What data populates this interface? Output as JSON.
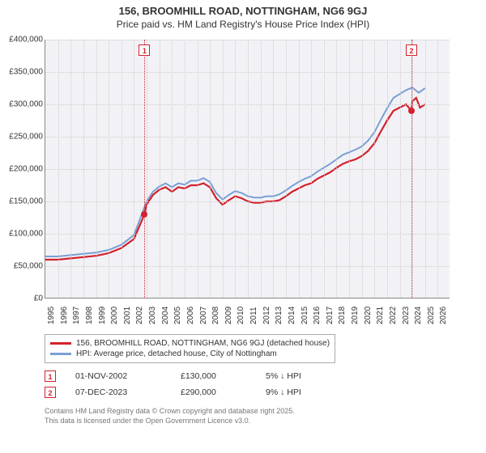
{
  "title": "156, BROOMHILL ROAD, NOTTINGHAM, NG6 9GJ",
  "subtitle": "Price paid vs. HM Land Registry's House Price Index (HPI)",
  "chart": {
    "type": "line",
    "background_color": "#f2f2f6",
    "grid_color": "#cccccc",
    "x": {
      "min": 1995,
      "max": 2027,
      "ticks": [
        1995,
        1996,
        1997,
        1998,
        1999,
        2000,
        2001,
        2002,
        2003,
        2004,
        2005,
        2006,
        2007,
        2008,
        2009,
        2010,
        2011,
        2012,
        2013,
        2014,
        2015,
        2016,
        2017,
        2018,
        2019,
        2020,
        2021,
        2022,
        2023,
        2024,
        2025,
        2026
      ]
    },
    "y": {
      "min": 0,
      "max": 400000,
      "ticks": [
        0,
        50000,
        100000,
        150000,
        200000,
        250000,
        300000,
        350000,
        400000
      ],
      "labels": [
        "£0",
        "£50,000",
        "£100,000",
        "£150,000",
        "£200,000",
        "£250,000",
        "£300,000",
        "£350,000",
        "£400,000"
      ]
    },
    "series": [
      {
        "name": "156, BROOMHILL ROAD, NOTTINGHAM, NG6 9GJ (detached house)",
        "color": "#d3212d",
        "width": 2.2,
        "points": [
          [
            1995,
            60000
          ],
          [
            1996,
            60000
          ],
          [
            1997,
            62000
          ],
          [
            1998,
            64000
          ],
          [
            1999,
            66000
          ],
          [
            2000,
            70000
          ],
          [
            2001,
            78000
          ],
          [
            2002,
            92000
          ],
          [
            2002.83,
            130000
          ],
          [
            2003,
            145000
          ],
          [
            2003.5,
            160000
          ],
          [
            2004,
            168000
          ],
          [
            2004.5,
            172000
          ],
          [
            2005,
            165000
          ],
          [
            2005.5,
            172000
          ],
          [
            2006,
            170000
          ],
          [
            2006.5,
            175000
          ],
          [
            2007,
            175000
          ],
          [
            2007.5,
            178000
          ],
          [
            2008,
            172000
          ],
          [
            2008.5,
            155000
          ],
          [
            2009,
            145000
          ],
          [
            2009.5,
            152000
          ],
          [
            2010,
            158000
          ],
          [
            2010.5,
            155000
          ],
          [
            2011,
            150000
          ],
          [
            2011.5,
            148000
          ],
          [
            2012,
            148000
          ],
          [
            2012.5,
            150000
          ],
          [
            2013,
            150000
          ],
          [
            2013.5,
            152000
          ],
          [
            2014,
            158000
          ],
          [
            2014.5,
            165000
          ],
          [
            2015,
            170000
          ],
          [
            2015.5,
            175000
          ],
          [
            2016,
            178000
          ],
          [
            2016.5,
            185000
          ],
          [
            2017,
            190000
          ],
          [
            2017.5,
            195000
          ],
          [
            2018,
            202000
          ],
          [
            2018.5,
            208000
          ],
          [
            2019,
            212000
          ],
          [
            2019.5,
            215000
          ],
          [
            2020,
            220000
          ],
          [
            2020.5,
            228000
          ],
          [
            2021,
            240000
          ],
          [
            2021.5,
            258000
          ],
          [
            2022,
            275000
          ],
          [
            2022.5,
            290000
          ],
          [
            2023,
            295000
          ],
          [
            2023.5,
            300000
          ],
          [
            2023.93,
            290000
          ],
          [
            2024,
            305000
          ],
          [
            2024.3,
            310000
          ],
          [
            2024.6,
            295000
          ],
          [
            2025,
            300000
          ]
        ]
      },
      {
        "name": "HPI: Average price, detached house, City of Nottingham",
        "color": "#7a9fd4",
        "width": 2,
        "points": [
          [
            1995,
            65000
          ],
          [
            1996,
            65000
          ],
          [
            1997,
            67000
          ],
          [
            1998,
            69000
          ],
          [
            1999,
            71000
          ],
          [
            2000,
            75000
          ],
          [
            2001,
            83000
          ],
          [
            2002,
            98000
          ],
          [
            2003,
            150000
          ],
          [
            2003.5,
            165000
          ],
          [
            2004,
            173000
          ],
          [
            2004.5,
            178000
          ],
          [
            2005,
            172000
          ],
          [
            2005.5,
            178000
          ],
          [
            2006,
            176000
          ],
          [
            2006.5,
            182000
          ],
          [
            2007,
            182000
          ],
          [
            2007.5,
            186000
          ],
          [
            2008,
            180000
          ],
          [
            2008.5,
            163000
          ],
          [
            2009,
            153000
          ],
          [
            2009.5,
            160000
          ],
          [
            2010,
            166000
          ],
          [
            2010.5,
            163000
          ],
          [
            2011,
            158000
          ],
          [
            2011.5,
            156000
          ],
          [
            2012,
            156000
          ],
          [
            2012.5,
            158000
          ],
          [
            2013,
            158000
          ],
          [
            2013.5,
            161000
          ],
          [
            2014,
            167000
          ],
          [
            2014.5,
            174000
          ],
          [
            2015,
            180000
          ],
          [
            2015.5,
            185000
          ],
          [
            2016,
            189000
          ],
          [
            2016.5,
            196000
          ],
          [
            2017,
            202000
          ],
          [
            2017.5,
            208000
          ],
          [
            2018,
            215000
          ],
          [
            2018.5,
            222000
          ],
          [
            2019,
            226000
          ],
          [
            2019.5,
            230000
          ],
          [
            2020,
            235000
          ],
          [
            2020.5,
            244000
          ],
          [
            2021,
            257000
          ],
          [
            2021.5,
            276000
          ],
          [
            2022,
            294000
          ],
          [
            2022.5,
            310000
          ],
          [
            2023,
            316000
          ],
          [
            2023.5,
            322000
          ],
          [
            2024,
            326000
          ],
          [
            2024.5,
            318000
          ],
          [
            2025,
            325000
          ]
        ]
      }
    ],
    "markers": [
      {
        "id": "1",
        "x": 2002.83,
        "y": 130000,
        "color": "#d3212d"
      },
      {
        "id": "2",
        "x": 2023.93,
        "y": 290000,
        "color": "#d3212d"
      }
    ]
  },
  "legend": {
    "items": [
      {
        "color": "#d3212d",
        "label": "156, BROOMHILL ROAD, NOTTINGHAM, NG6 9GJ (detached house)"
      },
      {
        "color": "#7a9fd4",
        "label": "HPI: Average price, detached house, City of Nottingham"
      }
    ]
  },
  "transactions": [
    {
      "id": "1",
      "color": "#d3212d",
      "date": "01-NOV-2002",
      "price": "£130,000",
      "delta": "5% ↓ HPI"
    },
    {
      "id": "2",
      "color": "#d3212d",
      "date": "07-DEC-2023",
      "price": "£290,000",
      "delta": "9% ↓ HPI"
    }
  ],
  "footer": {
    "line1": "Contains HM Land Registry data © Crown copyright and database right 2025.",
    "line2": "This data is licensed under the Open Government Licence v3.0."
  }
}
